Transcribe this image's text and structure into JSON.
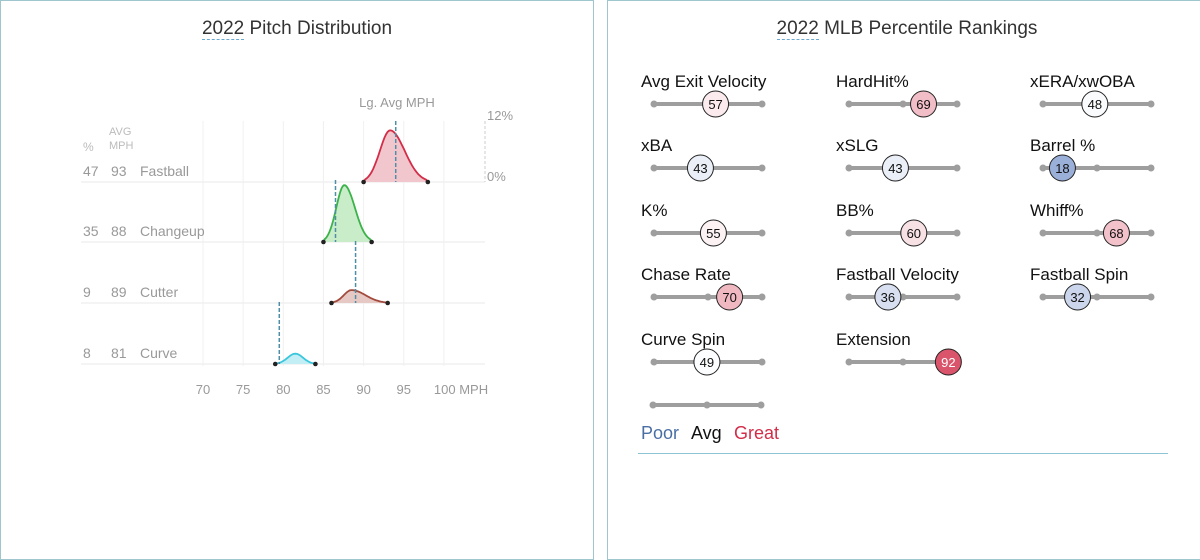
{
  "left": {
    "title_year": "2022",
    "title_rest": " Pitch Distribution"
  },
  "right": {
    "title_year": "2022",
    "title_rest": " MLB Percentile Rankings"
  },
  "legend": {
    "poor": "Poor",
    "avg": "Avg",
    "great": "Great",
    "poor_color": "#4a6fa5",
    "avg_color": "#111111",
    "great_color": "#d22d49"
  },
  "chart_data": [
    {
      "type": "area",
      "title": "2022 Pitch Distribution",
      "xlabel": "MPH",
      "x_ticks": [
        70,
        75,
        80,
        85,
        90,
        95,
        100
      ],
      "x_tick_labels": [
        "70",
        "75",
        "80",
        "85",
        "90",
        "95",
        "100 MPH"
      ],
      "xlim": [
        65,
        103
      ],
      "y_scale_labels": [
        "12%",
        "0%"
      ],
      "column_headers": {
        "pct": "%",
        "avg_mph": "AVG\nMPH"
      },
      "lg_avg_label": "Lg. Avg MPH",
      "series": [
        {
          "name": "Fastball",
          "pct": 47,
          "avg_mph": 93,
          "min": 90,
          "max": 98,
          "peak": 93.3,
          "peak_height_pct": 10,
          "lg_avg": 94,
          "color": "#d22d49",
          "fill": "#f2c6cd"
        },
        {
          "name": "Changeup",
          "pct": 35,
          "avg_mph": 88,
          "min": 85,
          "max": 91,
          "peak": 87.6,
          "peak_height_pct": 11,
          "lg_avg": 86.5,
          "color": "#3bb34a",
          "fill": "#c9ecc9"
        },
        {
          "name": "Cutter",
          "pct": 9,
          "avg_mph": 89,
          "min": 86,
          "max": 93,
          "peak": 88.5,
          "peak_height_pct": 2.5,
          "lg_avg": 89,
          "color": "#a34a3f",
          "fill": "#e6c9c4"
        },
        {
          "name": "Curve",
          "pct": 8,
          "avg_mph": 81,
          "min": 79,
          "max": 84,
          "peak": 81.5,
          "peak_height_pct": 2,
          "lg_avg": 79.5,
          "color": "#3ac7dd",
          "fill": "#c4eef5"
        }
      ]
    },
    {
      "type": "table",
      "title": "2022 MLB Percentile Rankings",
      "metrics": [
        {
          "name": "Avg Exit Velocity",
          "percentile": 57
        },
        {
          "name": "HardHit%",
          "percentile": 69
        },
        {
          "name": "xERA/xwOBA",
          "percentile": 48
        },
        {
          "name": "xBA",
          "percentile": 43
        },
        {
          "name": "xSLG",
          "percentile": 43
        },
        {
          "name": "Barrel %",
          "percentile": 18
        },
        {
          "name": "K%",
          "percentile": 55
        },
        {
          "name": "BB%",
          "percentile": 60
        },
        {
          "name": "Whiff%",
          "percentile": 68
        },
        {
          "name": "Chase Rate",
          "percentile": 70
        },
        {
          "name": "Fastball Velocity",
          "percentile": 36
        },
        {
          "name": "Fastball Spin",
          "percentile": 32
        },
        {
          "name": "Curve Spin",
          "percentile": 49
        },
        {
          "name": "Extension",
          "percentile": 92
        }
      ]
    }
  ]
}
